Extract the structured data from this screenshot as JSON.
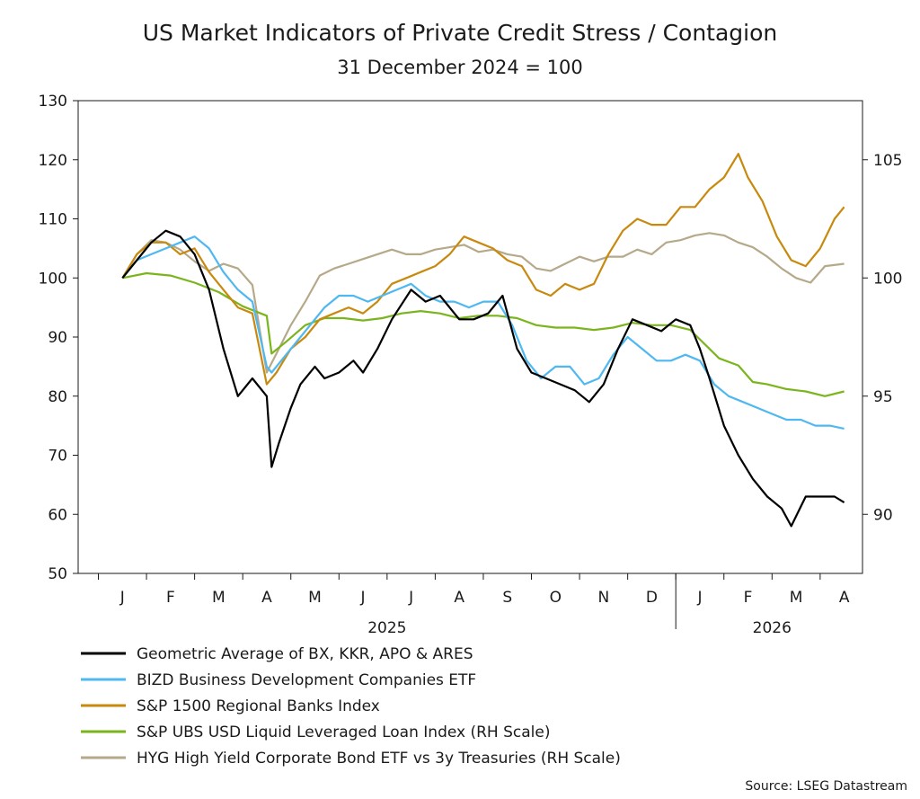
{
  "chart_data": {
    "type": "line",
    "title": "US Market Indicators of Private Credit Stress / Contagion",
    "subtitle": "31 December 2024 = 100",
    "source": "Source: LSEG Datastream",
    "x_months": [
      "J",
      "F",
      "M",
      "A",
      "M",
      "J",
      "J",
      "A",
      "S",
      "O",
      "N",
      "D",
      "J",
      "F",
      "M",
      "A"
    ],
    "x_years": [
      "2025",
      "2026"
    ],
    "y_left": {
      "min": 50,
      "max": 130,
      "ticks": [
        "50",
        "60",
        "70",
        "80",
        "90",
        "100",
        "110",
        "120",
        "130"
      ]
    },
    "y_right": {
      "min": 87.5,
      "max": 107.5,
      "ticks": [
        "90",
        "95",
        "100",
        "105"
      ]
    },
    "grid": false,
    "legend_position": "bottom",
    "series": [
      {
        "name": "Geometric Average of BX, KKR, APO & ARES",
        "axis": "left",
        "color": "#000000",
        "points": [
          [
            0,
            100
          ],
          [
            0.3,
            103
          ],
          [
            0.6,
            106
          ],
          [
            0.9,
            108
          ],
          [
            1.2,
            107
          ],
          [
            1.5,
            104
          ],
          [
            1.8,
            98
          ],
          [
            2.1,
            88
          ],
          [
            2.4,
            80
          ],
          [
            2.7,
            83
          ],
          [
            3.0,
            80
          ],
          [
            3.1,
            68
          ],
          [
            3.25,
            72
          ],
          [
            3.5,
            78
          ],
          [
            3.7,
            82
          ],
          [
            4.0,
            85
          ],
          [
            4.2,
            83
          ],
          [
            4.5,
            84
          ],
          [
            4.8,
            86
          ],
          [
            5.0,
            84
          ],
          [
            5.3,
            88
          ],
          [
            5.6,
            93
          ],
          [
            6.0,
            98
          ],
          [
            6.3,
            96
          ],
          [
            6.6,
            97
          ],
          [
            7.0,
            93
          ],
          [
            7.3,
            93
          ],
          [
            7.6,
            94
          ],
          [
            7.9,
            97
          ],
          [
            8.2,
            88
          ],
          [
            8.5,
            84
          ],
          [
            8.8,
            83
          ],
          [
            9.1,
            82
          ],
          [
            9.4,
            81
          ],
          [
            9.7,
            79
          ],
          [
            10.0,
            82
          ],
          [
            10.3,
            88
          ],
          [
            10.6,
            93
          ],
          [
            10.9,
            92
          ],
          [
            11.2,
            91
          ],
          [
            11.5,
            93
          ],
          [
            11.8,
            92
          ],
          [
            12.0,
            88
          ],
          [
            12.2,
            83
          ],
          [
            12.5,
            75
          ],
          [
            12.8,
            70
          ],
          [
            13.1,
            66
          ],
          [
            13.4,
            63
          ],
          [
            13.7,
            61
          ],
          [
            13.9,
            58
          ],
          [
            14.2,
            63
          ],
          [
            14.5,
            63
          ],
          [
            14.8,
            63
          ],
          [
            15.0,
            62
          ]
        ]
      },
      {
        "name": "BIZD Business Development Companies ETF",
        "axis": "left",
        "color": "#4fb8f0",
        "points": [
          [
            0,
            100
          ],
          [
            0.3,
            103
          ],
          [
            0.6,
            104
          ],
          [
            0.9,
            105
          ],
          [
            1.2,
            106
          ],
          [
            1.5,
            107
          ],
          [
            1.8,
            105
          ],
          [
            2.1,
            101
          ],
          [
            2.4,
            98
          ],
          [
            2.7,
            96
          ],
          [
            3.0,
            85
          ],
          [
            3.1,
            84
          ],
          [
            3.3,
            86
          ],
          [
            3.6,
            89
          ],
          [
            3.9,
            92
          ],
          [
            4.2,
            95
          ],
          [
            4.5,
            97
          ],
          [
            4.8,
            97
          ],
          [
            5.1,
            96
          ],
          [
            5.4,
            97
          ],
          [
            5.7,
            98
          ],
          [
            6.0,
            99
          ],
          [
            6.3,
            97
          ],
          [
            6.6,
            96
          ],
          [
            6.9,
            96
          ],
          [
            7.2,
            95
          ],
          [
            7.5,
            96
          ],
          [
            7.8,
            96
          ],
          [
            8.1,
            92
          ],
          [
            8.4,
            86
          ],
          [
            8.7,
            83
          ],
          [
            9.0,
            85
          ],
          [
            9.3,
            85
          ],
          [
            9.6,
            82
          ],
          [
            9.9,
            83
          ],
          [
            10.2,
            87
          ],
          [
            10.5,
            90
          ],
          [
            10.8,
            88
          ],
          [
            11.1,
            86
          ],
          [
            11.4,
            86
          ],
          [
            11.7,
            87
          ],
          [
            12.0,
            86
          ],
          [
            12.3,
            82
          ],
          [
            12.6,
            80
          ],
          [
            12.9,
            79
          ],
          [
            13.2,
            78
          ],
          [
            13.5,
            77
          ],
          [
            13.8,
            76
          ],
          [
            14.1,
            76
          ],
          [
            14.4,
            75
          ],
          [
            14.7,
            75
          ],
          [
            15.0,
            74.5
          ]
        ]
      },
      {
        "name": "S&P 1500 Regional Banks Index",
        "axis": "left",
        "color": "#c88a0e",
        "points": [
          [
            0,
            100
          ],
          [
            0.3,
            104
          ],
          [
            0.6,
            106
          ],
          [
            0.9,
            106
          ],
          [
            1.2,
            104
          ],
          [
            1.5,
            105
          ],
          [
            1.8,
            101
          ],
          [
            2.1,
            98
          ],
          [
            2.4,
            95
          ],
          [
            2.7,
            94
          ],
          [
            3.0,
            82
          ],
          [
            3.2,
            84
          ],
          [
            3.5,
            88
          ],
          [
            3.8,
            90
          ],
          [
            4.1,
            93
          ],
          [
            4.4,
            94
          ],
          [
            4.7,
            95
          ],
          [
            5.0,
            94
          ],
          [
            5.3,
            96
          ],
          [
            5.6,
            99
          ],
          [
            5.9,
            100
          ],
          [
            6.2,
            101
          ],
          [
            6.5,
            102
          ],
          [
            6.8,
            104
          ],
          [
            7.1,
            107
          ],
          [
            7.4,
            106
          ],
          [
            7.7,
            105
          ],
          [
            8.0,
            103
          ],
          [
            8.3,
            102
          ],
          [
            8.6,
            98
          ],
          [
            8.9,
            97
          ],
          [
            9.2,
            99
          ],
          [
            9.5,
            98
          ],
          [
            9.8,
            99
          ],
          [
            10.1,
            104
          ],
          [
            10.4,
            108
          ],
          [
            10.7,
            110
          ],
          [
            11.0,
            109
          ],
          [
            11.3,
            109
          ],
          [
            11.6,
            112
          ],
          [
            11.9,
            112
          ],
          [
            12.2,
            115
          ],
          [
            12.5,
            117
          ],
          [
            12.8,
            121
          ],
          [
            13.0,
            117
          ],
          [
            13.3,
            113
          ],
          [
            13.6,
            107
          ],
          [
            13.9,
            103
          ],
          [
            14.2,
            102
          ],
          [
            14.5,
            105
          ],
          [
            14.8,
            110
          ],
          [
            15.0,
            112
          ]
        ]
      },
      {
        "name": "S&P UBS USD Liquid Leveraged Loan Index (RH Scale)",
        "axis": "right",
        "color": "#7ab51d",
        "points": [
          [
            0,
            100
          ],
          [
            0.5,
            100.2
          ],
          [
            1.0,
            100.1
          ],
          [
            1.5,
            99.8
          ],
          [
            2.0,
            99.4
          ],
          [
            2.5,
            98.8
          ],
          [
            3.0,
            98.4
          ],
          [
            3.1,
            96.8
          ],
          [
            3.4,
            97.3
          ],
          [
            3.8,
            98.0
          ],
          [
            4.2,
            98.3
          ],
          [
            4.6,
            98.3
          ],
          [
            5.0,
            98.2
          ],
          [
            5.4,
            98.3
          ],
          [
            5.8,
            98.5
          ],
          [
            6.2,
            98.6
          ],
          [
            6.6,
            98.5
          ],
          [
            7.0,
            98.3
          ],
          [
            7.4,
            98.4
          ],
          [
            7.8,
            98.4
          ],
          [
            8.2,
            98.3
          ],
          [
            8.6,
            98.0
          ],
          [
            9.0,
            97.9
          ],
          [
            9.4,
            97.9
          ],
          [
            9.8,
            97.8
          ],
          [
            10.2,
            97.9
          ],
          [
            10.6,
            98.1
          ],
          [
            11.0,
            98.0
          ],
          [
            11.4,
            98.0
          ],
          [
            11.8,
            97.8
          ],
          [
            12.0,
            97.4
          ],
          [
            12.4,
            96.6
          ],
          [
            12.8,
            96.3
          ],
          [
            13.1,
            95.6
          ],
          [
            13.4,
            95.5
          ],
          [
            13.8,
            95.3
          ],
          [
            14.2,
            95.2
          ],
          [
            14.6,
            95.0
          ],
          [
            15.0,
            95.2
          ]
        ]
      },
      {
        "name": "HYG High Yield Corporate Bond ETF vs 3y Treasuries (RH Scale)",
        "axis": "right",
        "color": "#b5a98a",
        "points": [
          [
            0,
            100
          ],
          [
            0.3,
            101
          ],
          [
            0.6,
            101.6
          ],
          [
            0.9,
            101.5
          ],
          [
            1.2,
            101.2
          ],
          [
            1.5,
            100.7
          ],
          [
            1.8,
            100.3
          ],
          [
            2.1,
            100.6
          ],
          [
            2.4,
            100.4
          ],
          [
            2.7,
            99.7
          ],
          [
            3.0,
            96.0
          ],
          [
            3.2,
            96.8
          ],
          [
            3.5,
            98.0
          ],
          [
            3.8,
            99.0
          ],
          [
            4.1,
            100.1
          ],
          [
            4.4,
            100.4
          ],
          [
            4.7,
            100.6
          ],
          [
            5.0,
            100.8
          ],
          [
            5.3,
            101.0
          ],
          [
            5.6,
            101.2
          ],
          [
            5.9,
            101.0
          ],
          [
            6.2,
            101.0
          ],
          [
            6.5,
            101.2
          ],
          [
            6.8,
            101.3
          ],
          [
            7.1,
            101.4
          ],
          [
            7.4,
            101.1
          ],
          [
            7.7,
            101.2
          ],
          [
            8.0,
            101.0
          ],
          [
            8.3,
            100.9
          ],
          [
            8.6,
            100.4
          ],
          [
            8.9,
            100.3
          ],
          [
            9.2,
            100.6
          ],
          [
            9.5,
            100.9
          ],
          [
            9.8,
            100.7
          ],
          [
            10.1,
            100.9
          ],
          [
            10.4,
            100.9
          ],
          [
            10.7,
            101.2
          ],
          [
            11.0,
            101.0
          ],
          [
            11.3,
            101.5
          ],
          [
            11.6,
            101.6
          ],
          [
            11.9,
            101.8
          ],
          [
            12.2,
            101.9
          ],
          [
            12.5,
            101.8
          ],
          [
            12.8,
            101.5
          ],
          [
            13.1,
            101.3
          ],
          [
            13.4,
            100.9
          ],
          [
            13.7,
            100.4
          ],
          [
            14.0,
            100.0
          ],
          [
            14.3,
            99.8
          ],
          [
            14.6,
            100.5
          ],
          [
            15.0,
            100.6
          ]
        ]
      }
    ]
  }
}
